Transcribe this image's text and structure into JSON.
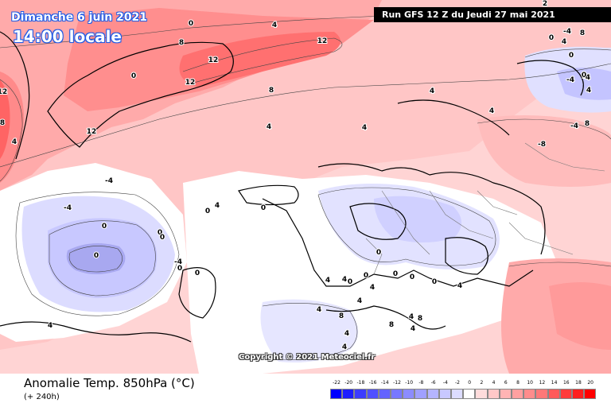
{
  "header": {
    "date": "Dimanche 6 juin 2021",
    "time": "14:00 locale",
    "run": "Run GFS 12 Z du Jeudi 27 mai 2021"
  },
  "copyright": "Copyright © 2021 Meteociel.fr",
  "footer": {
    "parameter": "Anomalie Temp. 850hPa (°C)",
    "lead_time": "(+ 240h)"
  },
  "legend": {
    "labels": [
      "-22",
      "-20",
      "-18",
      "-16",
      "-14",
      "-12",
      "-10",
      "-8",
      "-6",
      "-4",
      "-2",
      "0",
      "2",
      "4",
      "6",
      "8",
      "10",
      "12",
      "14",
      "16",
      "18",
      "20"
    ],
    "colors": [
      "#0000ff",
      "#1e1eff",
      "#3c3cff",
      "#5050ff",
      "#6464ff",
      "#7878ff",
      "#8c8cff",
      "#a0a0ff",
      "#b4b4ff",
      "#c8c8ff",
      "#dcdcff",
      "#ffffff",
      "#ffdcdc",
      "#ffc8c8",
      "#ffb4b4",
      "#ffa0a0",
      "#ff8c8c",
      "#ff7878",
      "#ff5a5a",
      "#ff3c3c",
      "#ff1e1e",
      "#ff0000"
    ]
  },
  "map_labels": [
    "0",
    "4",
    "8",
    "12",
    "12",
    "12",
    "12",
    "8",
    "8",
    "4",
    "4",
    "4",
    "4",
    "0",
    "12",
    "2",
    "8",
    "8",
    "4",
    "4",
    "0",
    "-4",
    "-4",
    "4",
    "0",
    "0",
    "-4",
    "-4",
    "-8",
    "-4",
    "0",
    "0",
    "0",
    "0",
    "-4",
    "-4",
    "0",
    "0",
    "0",
    "4",
    "0",
    "4",
    "4",
    "4",
    "0",
    "0",
    "0",
    "0",
    "0",
    "0",
    "4",
    "4",
    "4",
    "8",
    "8",
    "4",
    "4",
    "4",
    "4",
    "8",
    "4"
  ]
}
